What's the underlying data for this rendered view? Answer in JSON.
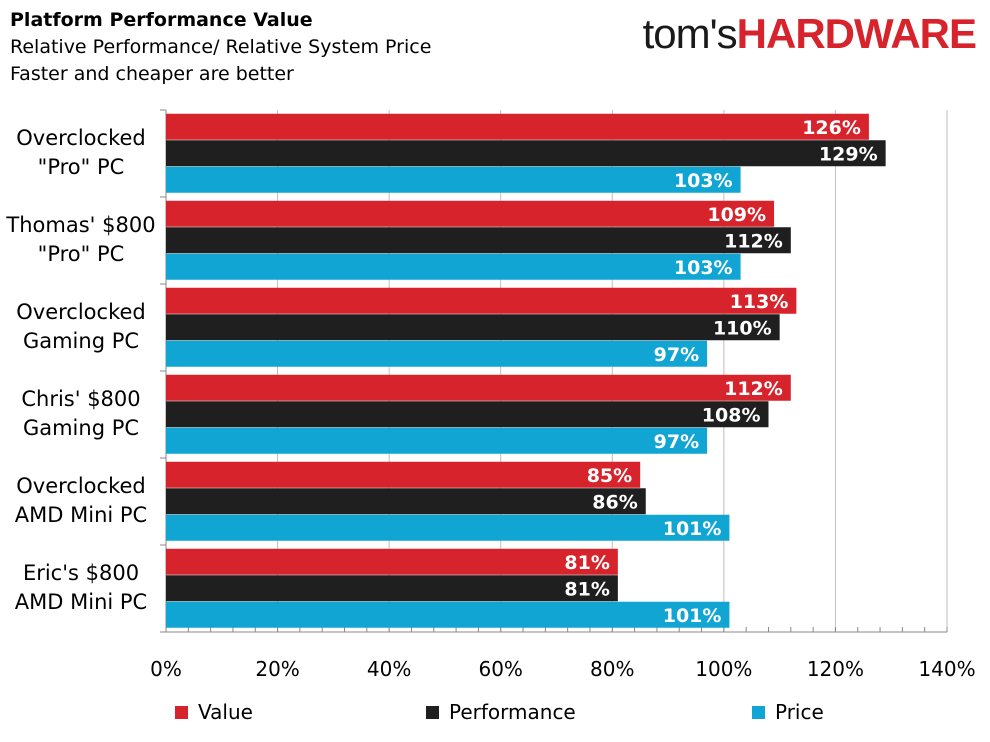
{
  "header": {
    "title": "Platform Performance Value",
    "subtitle1": "Relative Performance/ Relative System Price",
    "subtitle2": "Faster and cheaper are better",
    "logo_part1": "tom's",
    "logo_part2": "HARDWARE"
  },
  "chart_data": {
    "type": "bar",
    "orientation": "horizontal",
    "categories": [
      "Overclocked \"Pro\" PC",
      "Thomas' $800 \"Pro\" PC",
      "Overclocked Gaming PC",
      "Chris' $800 Gaming PC",
      "Overclocked AMD Mini PC",
      "Eric's $800 AMD Mini PC"
    ],
    "category_lines": [
      [
        "Overclocked",
        "\"Pro\" PC"
      ],
      [
        "Thomas' $800",
        "\"Pro\" PC"
      ],
      [
        "Overclocked",
        "Gaming PC"
      ],
      [
        "Chris' $800",
        "Gaming PC"
      ],
      [
        "Overclocked",
        "AMD Mini PC"
      ],
      [
        "Eric's $800",
        "AMD Mini PC"
      ]
    ],
    "series": [
      {
        "name": "Value",
        "color": "#d7242c",
        "values": [
          126,
          109,
          113,
          112,
          85,
          81
        ]
      },
      {
        "name": "Performance",
        "color": "#1f1f1f",
        "values": [
          129,
          112,
          110,
          108,
          86,
          81
        ]
      },
      {
        "name": "Price",
        "color": "#11a5d4",
        "values": [
          103,
          103,
          97,
          97,
          101,
          101
        ]
      }
    ],
    "xlim": [
      0,
      140
    ],
    "xticks": [
      "0%",
      "20%",
      "40%",
      "60%",
      "80%",
      "100%",
      "120%",
      "140%"
    ],
    "xtick_values": [
      0,
      20,
      40,
      60,
      80,
      100,
      120,
      140
    ],
    "value_suffix": "%",
    "grid": "vertical",
    "legend_position": "bottom"
  }
}
